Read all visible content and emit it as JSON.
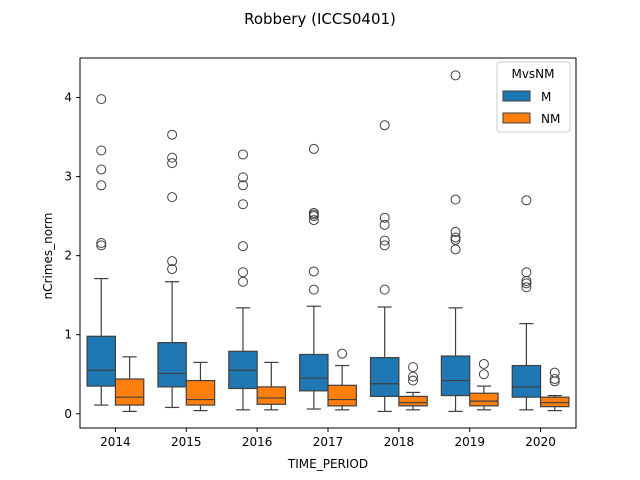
{
  "chart_data": {
    "type": "box",
    "title": "Robbery (ICCS0401)",
    "xlabel": "TIME_PERIOD",
    "ylabel": "nCrimes_norm",
    "ylim": [
      -0.18,
      4.5
    ],
    "yticks": [
      "0",
      "1",
      "2",
      "3",
      "4"
    ],
    "categories": [
      "2014",
      "2015",
      "2016",
      "2017",
      "2018",
      "2019",
      "2020"
    ],
    "legend": {
      "title": "MvsNM",
      "position": "top-right"
    },
    "grid": false,
    "series": [
      {
        "name": "M",
        "color": "#1f77b4",
        "boxes": [
          {
            "whisker_low": 0.11,
            "q1": 0.35,
            "median": 0.55,
            "q3": 0.98,
            "whisker_high": 1.71,
            "outliers": [
              2.13,
              2.16,
              2.89,
              3.09,
              3.33,
              3.98
            ]
          },
          {
            "whisker_low": 0.08,
            "q1": 0.34,
            "median": 0.51,
            "q3": 0.9,
            "whisker_high": 1.67,
            "outliers": [
              1.83,
              1.93,
              2.74,
              3.17,
              3.24,
              3.53
            ]
          },
          {
            "whisker_low": 0.05,
            "q1": 0.32,
            "median": 0.55,
            "q3": 0.79,
            "whisker_high": 1.34,
            "outliers": [
              1.67,
              1.79,
              2.12,
              2.65,
              2.89,
              2.99,
              3.28
            ]
          },
          {
            "whisker_low": 0.06,
            "q1": 0.29,
            "median": 0.45,
            "q3": 0.75,
            "whisker_high": 1.36,
            "outliers": [
              1.57,
              1.8,
              2.45,
              2.5,
              2.52,
              2.54,
              3.35
            ]
          },
          {
            "whisker_low": 0.03,
            "q1": 0.22,
            "median": 0.38,
            "q3": 0.71,
            "whisker_high": 1.35,
            "outliers": [
              1.57,
              2.13,
              2.19,
              2.39,
              2.48,
              3.65
            ]
          },
          {
            "whisker_low": 0.03,
            "q1": 0.23,
            "median": 0.42,
            "q3": 0.73,
            "whisker_high": 1.34,
            "outliers": [
              2.08,
              2.2,
              2.23,
              2.3,
              2.71,
              4.28
            ]
          },
          {
            "whisker_low": 0.05,
            "q1": 0.21,
            "median": 0.34,
            "q3": 0.61,
            "whisker_high": 1.14,
            "outliers": [
              1.6,
              1.65,
              1.68,
              1.79,
              2.7
            ]
          }
        ]
      },
      {
        "name": "NM",
        "color": "#ff7f0e",
        "boxes": [
          {
            "whisker_low": 0.03,
            "q1": 0.11,
            "median": 0.21,
            "q3": 0.44,
            "whisker_high": 0.72,
            "outliers": []
          },
          {
            "whisker_low": 0.04,
            "q1": 0.11,
            "median": 0.18,
            "q3": 0.42,
            "whisker_high": 0.65,
            "outliers": []
          },
          {
            "whisker_low": 0.05,
            "q1": 0.12,
            "median": 0.2,
            "q3": 0.34,
            "whisker_high": 0.65,
            "outliers": []
          },
          {
            "whisker_low": 0.05,
            "q1": 0.1,
            "median": 0.18,
            "q3": 0.36,
            "whisker_high": 0.61,
            "outliers": [
              0.76
            ]
          },
          {
            "whisker_low": 0.05,
            "q1": 0.1,
            "median": 0.14,
            "q3": 0.22,
            "whisker_high": 0.27,
            "outliers": [
              0.42,
              0.47,
              0.59
            ]
          },
          {
            "whisker_low": 0.05,
            "q1": 0.1,
            "median": 0.16,
            "q3": 0.26,
            "whisker_high": 0.35,
            "outliers": [
              0.5,
              0.63
            ]
          },
          {
            "whisker_low": 0.04,
            "q1": 0.09,
            "median": 0.14,
            "q3": 0.21,
            "whisker_high": 0.23,
            "outliers": [
              0.41,
              0.44,
              0.52
            ]
          }
        ]
      }
    ]
  }
}
